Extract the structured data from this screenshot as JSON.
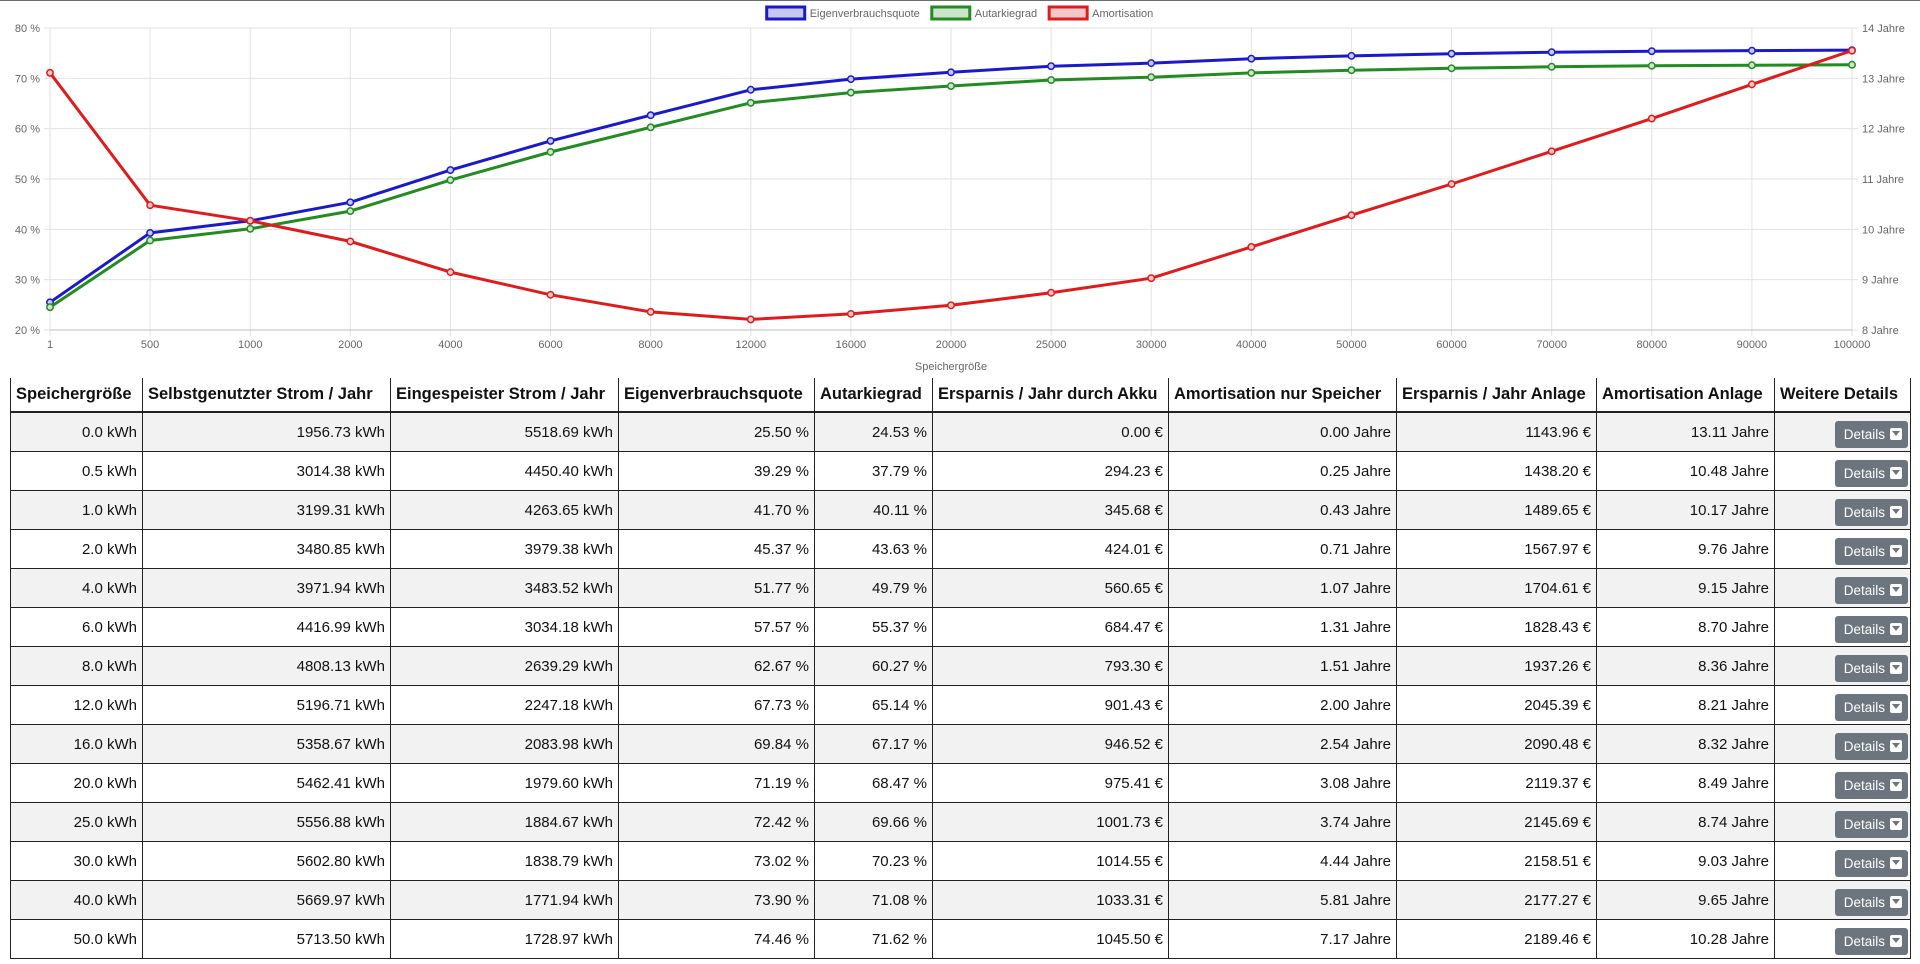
{
  "chart_data": {
    "type": "line",
    "xlabel": "Speichergröße",
    "categories": [
      "1",
      "500",
      "1000",
      "2000",
      "4000",
      "6000",
      "8000",
      "12000",
      "16000",
      "20000",
      "25000",
      "30000",
      "40000",
      "50000",
      "60000",
      "70000",
      "80000",
      "90000",
      "100000"
    ],
    "left_axis": {
      "ylim": [
        20,
        80
      ],
      "ticks": [
        "20 %",
        "30 %",
        "40 %",
        "50 %",
        "60 %",
        "70 %",
        "80 %"
      ],
      "tick_values": [
        20,
        30,
        40,
        50,
        60,
        70,
        80
      ]
    },
    "right_axis": {
      "ylim": [
        8,
        14
      ],
      "ticks": [
        "8 Jahre",
        "9 Jahre",
        "10 Jahre",
        "11 Jahre",
        "12 Jahre",
        "13 Jahre",
        "14 Jahre"
      ],
      "tick_values": [
        8,
        9,
        10,
        11,
        12,
        13,
        14
      ]
    },
    "grid": true,
    "legend_position": "top",
    "series": [
      {
        "name": "Eigenverbrauchsquote",
        "axis": "left",
        "color": "#1a1acc",
        "fill": "#c8c8ee",
        "values": [
          25.5,
          39.29,
          41.7,
          45.37,
          51.77,
          57.57,
          62.67,
          67.73,
          69.84,
          71.19,
          72.42,
          73.02,
          73.9,
          74.46,
          74.9,
          75.2,
          75.4,
          75.5,
          75.6
        ]
      },
      {
        "name": "Autarkiegrad",
        "axis": "left",
        "color": "#228b22",
        "fill": "#cce4cc",
        "values": [
          24.53,
          37.79,
          40.11,
          43.63,
          49.79,
          55.37,
          60.27,
          65.14,
          67.17,
          68.47,
          69.66,
          70.23,
          71.08,
          71.62,
          72.0,
          72.3,
          72.5,
          72.6,
          72.7
        ]
      },
      {
        "name": "Amortisation",
        "axis": "right",
        "color": "#e01b1b",
        "fill": "#f4c8c8",
        "values": [
          13.11,
          10.48,
          10.17,
          9.76,
          9.15,
          8.7,
          8.36,
          8.21,
          8.32,
          8.49,
          8.74,
          9.03,
          9.65,
          10.28,
          10.9,
          11.55,
          12.2,
          12.88,
          13.55
        ]
      }
    ]
  },
  "table": {
    "headers": [
      "Speichergröße",
      "Selbstgenutzter Strom / Jahr",
      "Eingespeister Strom / Jahr",
      "Eigenverbrauchsquote",
      "Autarkiegrad",
      "Ersparnis / Jahr durch Akku",
      "Amortisation nur Speicher",
      "Ersparnis / Jahr Anlage",
      "Amortisation Anlage",
      "Weitere Details"
    ],
    "button_label": "Details",
    "rows": [
      [
        "0.0 kWh",
        "1956.73 kWh",
        "5518.69 kWh",
        "25.50 %",
        "24.53 %",
        "0.00 €",
        "0.00 Jahre",
        "1143.96 €",
        "13.11 Jahre"
      ],
      [
        "0.5 kWh",
        "3014.38 kWh",
        "4450.40 kWh",
        "39.29 %",
        "37.79 %",
        "294.23 €",
        "0.25 Jahre",
        "1438.20 €",
        "10.48 Jahre"
      ],
      [
        "1.0 kWh",
        "3199.31 kWh",
        "4263.65 kWh",
        "41.70 %",
        "40.11 %",
        "345.68 €",
        "0.43 Jahre",
        "1489.65 €",
        "10.17 Jahre"
      ],
      [
        "2.0 kWh",
        "3480.85 kWh",
        "3979.38 kWh",
        "45.37 %",
        "43.63 %",
        "424.01 €",
        "0.71 Jahre",
        "1567.97 €",
        "9.76 Jahre"
      ],
      [
        "4.0 kWh",
        "3971.94 kWh",
        "3483.52 kWh",
        "51.77 %",
        "49.79 %",
        "560.65 €",
        "1.07 Jahre",
        "1704.61 €",
        "9.15 Jahre"
      ],
      [
        "6.0 kWh",
        "4416.99 kWh",
        "3034.18 kWh",
        "57.57 %",
        "55.37 %",
        "684.47 €",
        "1.31 Jahre",
        "1828.43 €",
        "8.70 Jahre"
      ],
      [
        "8.0 kWh",
        "4808.13 kWh",
        "2639.29 kWh",
        "62.67 %",
        "60.27 %",
        "793.30 €",
        "1.51 Jahre",
        "1937.26 €",
        "8.36 Jahre"
      ],
      [
        "12.0 kWh",
        "5196.71 kWh",
        "2247.18 kWh",
        "67.73 %",
        "65.14 %",
        "901.43 €",
        "2.00 Jahre",
        "2045.39 €",
        "8.21 Jahre"
      ],
      [
        "16.0 kWh",
        "5358.67 kWh",
        "2083.98 kWh",
        "69.84 %",
        "67.17 %",
        "946.52 €",
        "2.54 Jahre",
        "2090.48 €",
        "8.32 Jahre"
      ],
      [
        "20.0 kWh",
        "5462.41 kWh",
        "1979.60 kWh",
        "71.19 %",
        "68.47 %",
        "975.41 €",
        "3.08 Jahre",
        "2119.37 €",
        "8.49 Jahre"
      ],
      [
        "25.0 kWh",
        "5556.88 kWh",
        "1884.67 kWh",
        "72.42 %",
        "69.66 %",
        "1001.73 €",
        "3.74 Jahre",
        "2145.69 €",
        "8.74 Jahre"
      ],
      [
        "30.0 kWh",
        "5602.80 kWh",
        "1838.79 kWh",
        "73.02 %",
        "70.23 %",
        "1014.55 €",
        "4.44 Jahre",
        "2158.51 €",
        "9.03 Jahre"
      ],
      [
        "40.0 kWh",
        "5669.97 kWh",
        "1771.94 kWh",
        "73.90 %",
        "71.08 %",
        "1033.31 €",
        "5.81 Jahre",
        "2177.27 €",
        "9.65 Jahre"
      ],
      [
        "50.0 kWh",
        "5713.50 kWh",
        "1728.97 kWh",
        "74.46 %",
        "71.62 %",
        "1045.50 €",
        "7.17 Jahre",
        "2189.46 €",
        "10.28 Jahre"
      ]
    ]
  }
}
